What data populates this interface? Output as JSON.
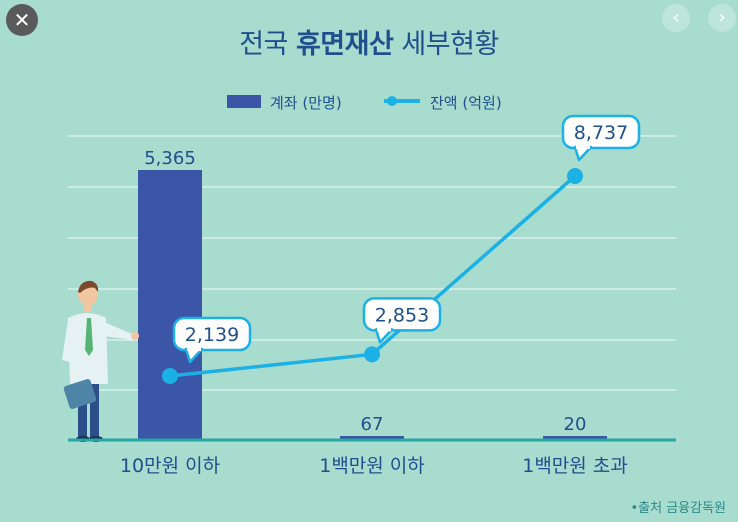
{
  "window": {
    "close_label": "✕",
    "prev_label": "‹",
    "next_label": "›"
  },
  "title": {
    "regular_prefix": "전국 ",
    "bold": "휴면재산",
    "regular_suffix": " 세부현황"
  },
  "source": "•출처 금융감독원",
  "chart_data": {
    "type": "bar",
    "categories": [
      "10만원 이하",
      "1백만원 이하",
      "1백만원 초과"
    ],
    "series": [
      {
        "name": "계좌 (만명)",
        "type": "bar",
        "values": [
          5365,
          67,
          20
        ],
        "labels": [
          "5,365",
          "67",
          "20"
        ]
      },
      {
        "name": "잔액 (억원)",
        "type": "line",
        "values": [
          2139,
          2853,
          8737
        ],
        "labels": [
          "2,139",
          "2,853",
          "8,737"
        ]
      }
    ],
    "grid": true,
    "legend_position": "top-center",
    "colors": {
      "bar": "#3b56a6",
      "line": "#1bb1e4",
      "text": "#1f4f8c",
      "baseline": "#26a7a3",
      "gridline": "#ffffff",
      "callout_border": "#1bb1e4"
    }
  }
}
